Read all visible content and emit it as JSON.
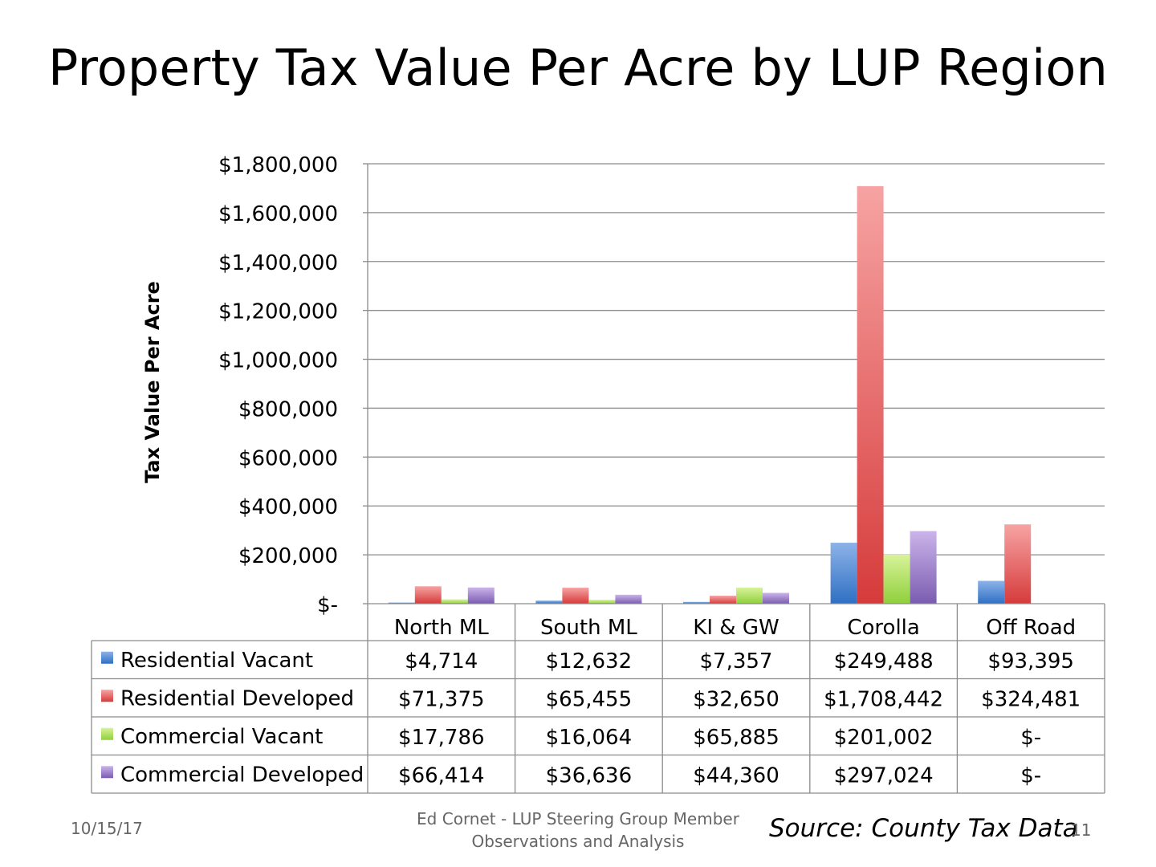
{
  "title": "Property Tax Value Per Acre by LUP Region",
  "footer": {
    "date": "10/15/17",
    "author_line1": "Ed Cornet - LUP Steering Group Member",
    "author_line2": "Observations and Analysis",
    "source": "Source: County Tax Data",
    "page": "11"
  },
  "chart_data": {
    "type": "bar",
    "title": "Property Tax Value Per Acre by LUP Region",
    "ylabel": "Tax Value Per Acre",
    "xlabel": "",
    "ylim": [
      0,
      1800000
    ],
    "yticks": [
      0,
      200000,
      400000,
      600000,
      800000,
      1000000,
      1200000,
      1400000,
      1600000,
      1800000
    ],
    "ytick_labels": [
      "$-",
      "$200,000",
      "$400,000",
      "$600,000",
      "$800,000",
      "$1,000,000",
      "$1,200,000",
      "$1,400,000",
      "$1,600,000",
      "$1,800,000"
    ],
    "categories": [
      "North ML",
      "South ML",
      "KI & GW",
      "Corolla",
      "Off Road"
    ],
    "series": [
      {
        "name": "Residential Vacant",
        "color": "#4f81bd",
        "values": [
          4714,
          12632,
          7357,
          249488,
          93395
        ],
        "labels": [
          "$4,714",
          "$12,632",
          "$7,357",
          "$249,488",
          "$93,395"
        ]
      },
      {
        "name": "Residential Developed",
        "color": "#c0504d",
        "values": [
          71375,
          65455,
          32650,
          1708442,
          324481
        ],
        "labels": [
          "$71,375",
          "$65,455",
          "$32,650",
          "$1,708,442",
          "$324,481"
        ]
      },
      {
        "name": "Commercial Vacant",
        "color": "#9bbb59",
        "values": [
          17786,
          16064,
          65885,
          201002,
          0
        ],
        "labels": [
          "$17,786",
          "$16,064",
          "$65,885",
          "$201,002",
          "$-"
        ]
      },
      {
        "name": "Commercial Developed",
        "color": "#8064a2",
        "values": [
          66414,
          36636,
          44360,
          297024,
          0
        ],
        "labels": [
          "$66,414",
          "$36,636",
          "$44,360",
          "$297,024",
          "$-"
        ]
      }
    ],
    "grid": true,
    "legend": "data-table-left"
  },
  "gradients": {
    "Residential Vacant": [
      "#8db3e8",
      "#2f6fc4"
    ],
    "Residential Developed": [
      "#f7a3a3",
      "#d63b3b"
    ],
    "Commercial Vacant": [
      "#d8f39a",
      "#8fcf3c"
    ],
    "Commercial Developed": [
      "#cbb4ea",
      "#7a5cb0"
    ]
  }
}
